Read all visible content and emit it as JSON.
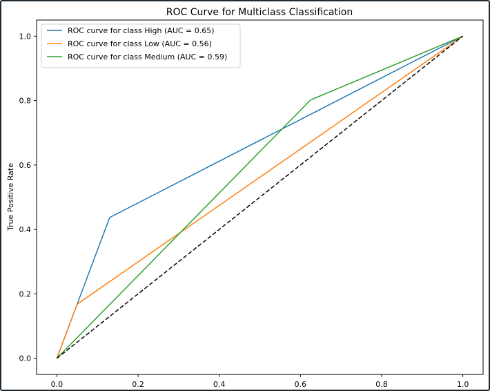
{
  "chart_data": {
    "type": "line",
    "title": "ROC Curve for Multiclass Classification",
    "xlabel": "",
    "ylabel": "True Positive Rate",
    "xlim": [
      -0.05,
      1.05
    ],
    "ylim": [
      -0.05,
      1.05
    ],
    "xticks": [
      0.0,
      0.2,
      0.4,
      0.6,
      0.8,
      1.0
    ],
    "yticks": [
      0.0,
      0.2,
      0.4,
      0.6,
      0.8,
      1.0
    ],
    "xtick_labels": [
      "0.0",
      "0.2",
      "0.4",
      "0.6",
      "0.8",
      "1.0"
    ],
    "ytick_labels": [
      "0.0",
      "0.2",
      "0.4",
      "0.6",
      "0.8",
      "1.0"
    ],
    "grid": false,
    "legend_position": "top-left",
    "series": [
      {
        "name": "ROC curve for class High (AUC = 0.65)",
        "color": "#1f77b4",
        "x": [
          0.0,
          0.13,
          1.0
        ],
        "y": [
          0.0,
          0.437,
          1.0
        ]
      },
      {
        "name": "ROC curve for class Low (AUC = 0.56)",
        "color": "#ff7f0e",
        "x": [
          0.0,
          0.05,
          1.0
        ],
        "y": [
          0.0,
          0.168,
          1.0
        ]
      },
      {
        "name": "ROC curve for class Medium (AUC = 0.59)",
        "color": "#2ca02c",
        "x": [
          0.0,
          0.625,
          1.0
        ],
        "y": [
          0.0,
          0.802,
          1.0
        ]
      }
    ],
    "reference_line": {
      "color": "#000000",
      "style": "dashed",
      "x": [
        0.0,
        1.0
      ],
      "y": [
        0.0,
        1.0
      ]
    }
  }
}
